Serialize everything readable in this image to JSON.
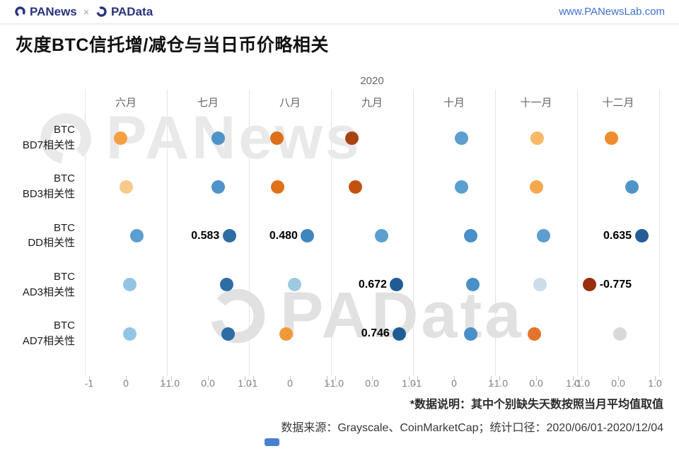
{
  "header": {
    "brand1": "PANews",
    "separator": "×",
    "brand2": "PAData",
    "url": "www.PANewsLab.com",
    "brand_color": "#29337e",
    "url_color": "#4170cf"
  },
  "title": "灰度BTC信托增/减仓与当日币价略相关",
  "watermarks": [
    "PANews",
    "PAData"
  ],
  "chart_data": {
    "type": "scatter",
    "title": "灰度BTC信托增/减仓与当日币价略相关",
    "year": "2020",
    "xlabel": "",
    "ylabel": "",
    "xlim": [
      -1,
      1
    ],
    "grid": "vertical-only",
    "columns": [
      "六月",
      "七月",
      "八月",
      "九月",
      "十月",
      "十一月",
      "十二月"
    ],
    "x_tick_labels": [
      [
        "-1",
        "0",
        "1"
      ],
      [
        "-1.0",
        "0.0",
        "1.0"
      ],
      [
        "-1",
        "0",
        "1"
      ],
      [
        "-1.0",
        "0.0",
        "1.0"
      ],
      [
        "-1",
        "0",
        "1"
      ],
      [
        "-1.0",
        "0.0",
        "1.0"
      ],
      [
        "-1.0",
        "0.0",
        "1.0"
      ]
    ],
    "rows": [
      {
        "label": [
          "BTC",
          "BD7相关性"
        ],
        "points": [
          {
            "value": -0.15,
            "color": "#f59f42"
          },
          {
            "value": 0.28,
            "color": "#4f93c9"
          },
          {
            "value": -0.35,
            "color": "#df6f1a"
          },
          {
            "value": -0.55,
            "color": "#a8430f"
          },
          {
            "value": 0.2,
            "color": "#5b9ecf"
          },
          {
            "value": 0.02,
            "color": "#f8b866"
          },
          {
            "value": -0.18,
            "color": "#ef8c2d"
          }
        ]
      },
      {
        "label": [
          "BTC",
          "BD3相关性"
        ],
        "points": [
          {
            "value": 0.0,
            "color": "#f6c98c"
          },
          {
            "value": 0.28,
            "color": "#4f93c9"
          },
          {
            "value": -0.33,
            "color": "#e0701a"
          },
          {
            "value": -0.45,
            "color": "#c2530f"
          },
          {
            "value": 0.2,
            "color": "#5b9ecf"
          },
          {
            "value": 0.0,
            "color": "#f5a94f"
          },
          {
            "value": 0.38,
            "color": "#4f93c9"
          }
        ]
      },
      {
        "label": [
          "BTC",
          "DD相关性"
        ],
        "points": [
          {
            "value": 0.3,
            "color": "#5b9ecf"
          },
          {
            "value": 0.583,
            "color": "#2e6da4",
            "label": "0.583",
            "label_side": "left"
          },
          {
            "value": 0.48,
            "color": "#3f85c0",
            "label": "0.480",
            "label_side": "left"
          },
          {
            "value": 0.25,
            "color": "#5b9ecf"
          },
          {
            "value": 0.45,
            "color": "#4a8fc7"
          },
          {
            "value": 0.2,
            "color": "#5b9ecf"
          },
          {
            "value": 0.635,
            "color": "#265d96",
            "label": "0.635",
            "label_side": "left"
          }
        ]
      },
      {
        "label": [
          "BTC",
          "AD3相关性"
        ],
        "points": [
          {
            "value": 0.1,
            "color": "#92c5e3"
          },
          {
            "value": 0.5,
            "color": "#2e6da4"
          },
          {
            "value": 0.12,
            "color": "#9ecae1"
          },
          {
            "value": 0.672,
            "color": "#1f5c96",
            "label": "0.672",
            "label_side": "left"
          },
          {
            "value": 0.5,
            "color": "#4a8fc7"
          },
          {
            "value": 0.1,
            "color": "#ccdce8"
          },
          {
            "value": -0.775,
            "color": "#9a2d0d",
            "label": "-0.775",
            "label_side": "right"
          }
        ]
      },
      {
        "label": [
          "BTC",
          "AD7相关性"
        ],
        "points": [
          {
            "value": 0.1,
            "color": "#92c5e3"
          },
          {
            "value": 0.55,
            "color": "#2e6da4"
          },
          {
            "value": -0.1,
            "color": "#f0993a"
          },
          {
            "value": 0.746,
            "color": "#1f5c96",
            "label": "0.746",
            "label_side": "left"
          },
          {
            "value": 0.45,
            "color": "#4a8fc7"
          },
          {
            "value": -0.05,
            "color": "#e4742b"
          },
          {
            "value": 0.05,
            "color": "#d9d9d9"
          }
        ]
      }
    ]
  },
  "footer": {
    "note": "*数据说明：其中个别缺失天数按照当月平均值取值",
    "source": "数据来源：Grayscale、CoinMarketCap；统计口径：2020/06/01-2020/12/04",
    "badge_color": "#4a7fd4"
  }
}
